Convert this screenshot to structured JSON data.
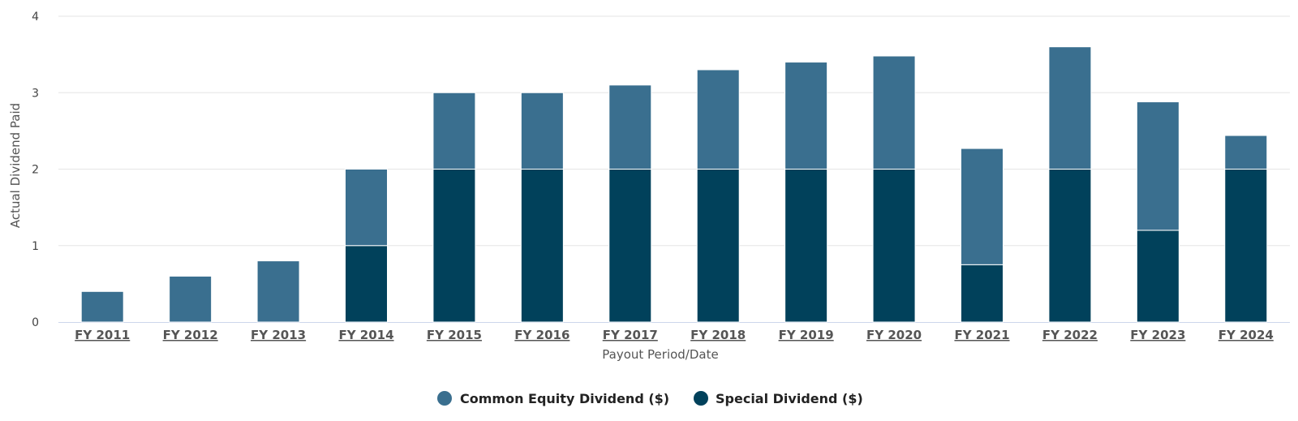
{
  "chart_data": {
    "type": "bar",
    "stacked": true,
    "categories": [
      "FY 2011",
      "FY 2012",
      "FY 2013",
      "FY 2014",
      "FY 2015",
      "FY 2016",
      "FY 2017",
      "FY 2018",
      "FY 2019",
      "FY 2020",
      "FY 2021",
      "FY 2022",
      "FY 2023",
      "FY 2024"
    ],
    "series": [
      {
        "name": "Special Dividend ($)",
        "color": "#01415b",
        "values": [
          0,
          0,
          0,
          1,
          2,
          2,
          2,
          2,
          2,
          2,
          0.75,
          2,
          1.2,
          2
        ]
      },
      {
        "name": "Common Equity Dividend ($)",
        "color": "#3a6f8f",
        "values": [
          0.4,
          0.6,
          0.8,
          1,
          1,
          1,
          1.1,
          1.3,
          1.4,
          1.48,
          1.52,
          1.6,
          1.68,
          0.44
        ]
      }
    ],
    "legend_order": [
      "Common Equity Dividend ($)",
      "Special Dividend ($)"
    ],
    "xlabel": "Payout Period/Date",
    "ylabel": "Actual Dividend Paid",
    "ylim": [
      0,
      4
    ],
    "yticks": [
      "0",
      "1",
      "2",
      "3",
      "4"
    ],
    "grid": true,
    "legend_position": "bottom-center"
  }
}
